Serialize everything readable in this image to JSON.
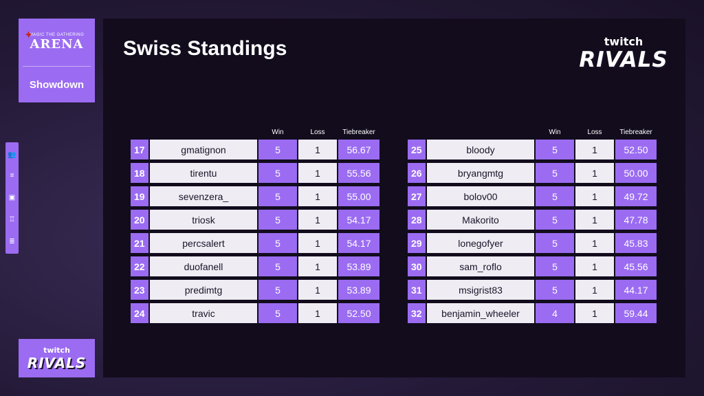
{
  "brand": {
    "game_small": "MAGIC THE GATHERING",
    "game_big": "ARENA",
    "event": "Showdown"
  },
  "sponsor": {
    "line1": "twitch",
    "line2": "RIVALS"
  },
  "title": "Swiss Standings",
  "columns": {
    "win": "Win",
    "loss": "Loss",
    "tiebreaker": "Tiebreaker"
  },
  "left_table": [
    {
      "rank": "17",
      "name": "gmatignon",
      "win": "5",
      "loss": "1",
      "tb": "56.67"
    },
    {
      "rank": "18",
      "name": "tirentu",
      "win": "5",
      "loss": "1",
      "tb": "55.56"
    },
    {
      "rank": "19",
      "name": "sevenzera_",
      "win": "5",
      "loss": "1",
      "tb": "55.00"
    },
    {
      "rank": "20",
      "name": "triosk",
      "win": "5",
      "loss": "1",
      "tb": "54.17"
    },
    {
      "rank": "21",
      "name": "percsalert",
      "win": "5",
      "loss": "1",
      "tb": "54.17"
    },
    {
      "rank": "22",
      "name": "duofanell",
      "win": "5",
      "loss": "1",
      "tb": "53.89"
    },
    {
      "rank": "23",
      "name": "predimtg",
      "win": "5",
      "loss": "1",
      "tb": "53.89"
    },
    {
      "rank": "24",
      "name": "travic",
      "win": "5",
      "loss": "1",
      "tb": "52.50"
    }
  ],
  "right_table": [
    {
      "rank": "25",
      "name": "bloody",
      "win": "5",
      "loss": "1",
      "tb": "52.50"
    },
    {
      "rank": "26",
      "name": "bryangmtg",
      "win": "5",
      "loss": "1",
      "tb": "50.00"
    },
    {
      "rank": "27",
      "name": "bolov00",
      "win": "5",
      "loss": "1",
      "tb": "49.72"
    },
    {
      "rank": "28",
      "name": "Makorito",
      "win": "5",
      "loss": "1",
      "tb": "47.78"
    },
    {
      "rank": "29",
      "name": "lonegofyer",
      "win": "5",
      "loss": "1",
      "tb": "45.83"
    },
    {
      "rank": "30",
      "name": "sam_roflo",
      "win": "5",
      "loss": "1",
      "tb": "45.56"
    },
    {
      "rank": "31",
      "name": "msigrist83",
      "win": "5",
      "loss": "1",
      "tb": "44.17"
    },
    {
      "rank": "32",
      "name": "benjamin_wheeler",
      "win": "4",
      "loss": "1",
      "tb": "59.44"
    }
  ],
  "rail_icons": [
    "players-icon",
    "bracket-icon",
    "calendar-icon",
    "trophy-icon",
    "leaderboard-icon"
  ],
  "colors": {
    "accent": "#9b6cf2",
    "light_cell": "#efedf3",
    "panel": "#120c1d"
  }
}
